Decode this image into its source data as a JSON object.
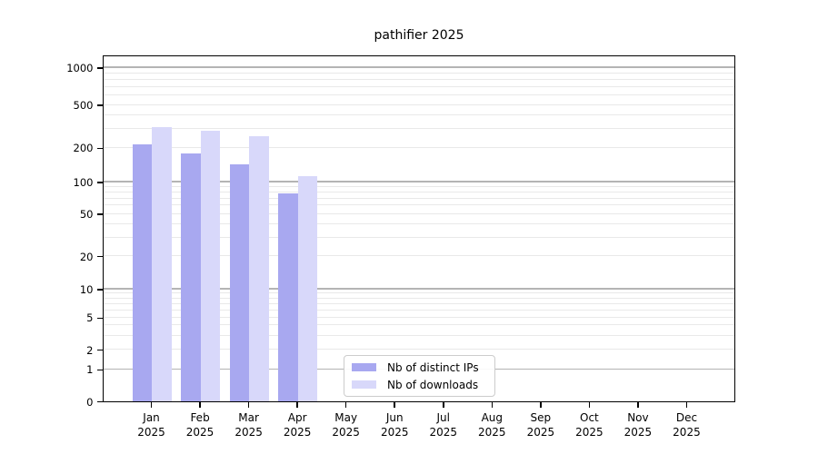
{
  "chart_data": {
    "type": "bar",
    "title": "pathifier 2025",
    "categories": [
      "Jan",
      "Feb",
      "Mar",
      "Apr",
      "May",
      "Jun",
      "Jul",
      "Aug",
      "Sep",
      "Oct",
      "Nov",
      "Dec"
    ],
    "category_year": "2025",
    "series": [
      {
        "name": "Nb of distinct IPs",
        "key": "distinct-ips",
        "color": "#a8a8f0",
        "values": [
          212,
          178,
          143,
          78,
          0,
          0,
          0,
          0,
          0,
          0,
          0,
          0
        ]
      },
      {
        "name": "Nb of downloads",
        "key": "downloads",
        "color": "#d8d8fa",
        "values": [
          306,
          285,
          255,
          112,
          0,
          0,
          0,
          0,
          0,
          0,
          0,
          0
        ]
      }
    ],
    "xlabel": "",
    "ylabel": "",
    "y_ticks": [
      0,
      1,
      2,
      5,
      10,
      20,
      50,
      100,
      200,
      500,
      1000
    ],
    "y_minor_ticks": [
      2,
      3,
      4,
      5,
      6,
      7,
      8,
      9,
      20,
      30,
      40,
      50,
      60,
      70,
      80,
      90,
      200,
      300,
      400,
      500,
      600,
      700,
      800,
      900
    ],
    "y_scale": "log-like (log(1+x))",
    "ylim": [
      0,
      1250
    ],
    "grid": "on",
    "legend_position": "inside-bottom-center",
    "colors": {
      "grid_major": "#b4b4b4",
      "grid_minor": "#e9e9e9",
      "axis": "#000000",
      "background": "#ffffff"
    }
  }
}
